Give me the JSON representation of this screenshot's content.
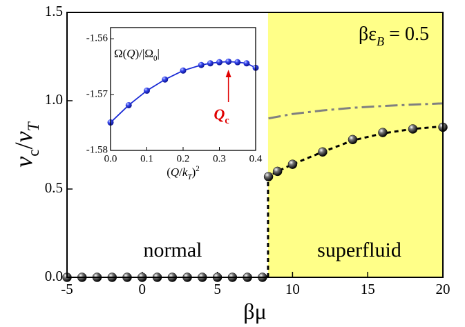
{
  "chart_data": {
    "type": "scatter",
    "x_label": [
      {
        "t": "βμ"
      }
    ],
    "y_label": [
      {
        "t": "v",
        "i": true
      },
      {
        "t": "c",
        "sub": true
      },
      {
        "t": "/"
      },
      {
        "t": "v",
        "i": true
      },
      {
        "t": "T",
        "sub": true,
        "i": true
      }
    ],
    "annotation": [
      {
        "t": "βε"
      },
      {
        "t": "B",
        "sub": true,
        "i": true
      },
      {
        "t": " = 0.5"
      }
    ],
    "region_labels": [
      "normal",
      "superfluid"
    ],
    "shade": {
      "from": 8.37,
      "to": 20,
      "color": "#ffff88"
    },
    "xlim": [
      -5,
      20
    ],
    "xticks": [
      -5,
      0,
      5,
      10,
      15,
      20
    ],
    "ylim": [
      0,
      1.5
    ],
    "yticks": [
      {
        "value": 0,
        "label": "0.0"
      },
      0.5,
      {
        "value": 1,
        "label": "1.0"
      },
      1.5
    ],
    "series": [
      {
        "kind": "markers",
        "color": "#000000",
        "x": [
          -5,
          -4,
          -3,
          -2,
          -1,
          0,
          1,
          2,
          3,
          4,
          5,
          6,
          7,
          8,
          8.4,
          9,
          10,
          12,
          14,
          16,
          18,
          20
        ],
        "values": [
          0,
          0,
          0,
          0,
          0,
          0,
          0,
          0,
          0,
          0,
          0,
          0,
          0,
          0,
          0.57,
          0.6,
          0.64,
          0.71,
          0.78,
          0.82,
          0.84,
          0.85
        ]
      },
      {
        "kind": "dash",
        "color": "#000000",
        "x": [
          8.37,
          8.37,
          9,
          10,
          12,
          14,
          16,
          18,
          20
        ],
        "values": [
          0,
          0.57,
          0.6,
          0.64,
          0.71,
          0.775,
          0.815,
          0.84,
          0.855
        ]
      },
      {
        "kind": "dashdot",
        "color": "#808080",
        "x": [
          8.4,
          10,
          12,
          14,
          16,
          18,
          20
        ],
        "values": [
          0.9,
          0.925,
          0.945,
          0.96,
          0.97,
          0.978,
          0.985
        ]
      }
    ],
    "inset": {
      "title": [
        {
          "t": "Ω(",
          "i": false
        },
        {
          "t": "Q",
          "i": true
        },
        {
          "t": ")/|Ω"
        },
        {
          "t": "0",
          "sub": true
        },
        {
          "t": "|"
        }
      ],
      "x_label": [
        {
          "t": "("
        },
        {
          "t": "Q",
          "i": true
        },
        {
          "t": "/"
        },
        {
          "t": "k",
          "i": true
        },
        {
          "t": "T",
          "sub": true,
          "i": true
        },
        {
          "t": ")"
        },
        {
          "t": "2",
          "sup": true
        }
      ],
      "xlim": [
        0,
        0.4
      ],
      "xticks": [
        {
          "value": 0,
          "label": "0.0"
        },
        0.1,
        0.2,
        0.3,
        0.4
      ],
      "ylim": [
        -1.58,
        -1.558
      ],
      "yticks": [
        -1.58,
        -1.57,
        -1.56
      ],
      "color": "#1a2bd6",
      "x": [
        0,
        0.05,
        0.1,
        0.15,
        0.2,
        0.25,
        0.275,
        0.3,
        0.325,
        0.35,
        0.375,
        0.4
      ],
      "values": [
        -1.575,
        -1.5719,
        -1.5693,
        -1.5673,
        -1.5657,
        -1.5647,
        -1.5644,
        -1.5642,
        -1.5641,
        -1.5642,
        -1.5644,
        -1.5652
      ],
      "annotation": {
        "parts": [
          {
            "t": "Q",
            "i": true
          },
          {
            "t": "c",
            "sub": true
          }
        ],
        "x": 0.325,
        "color": "#e00000"
      }
    }
  }
}
